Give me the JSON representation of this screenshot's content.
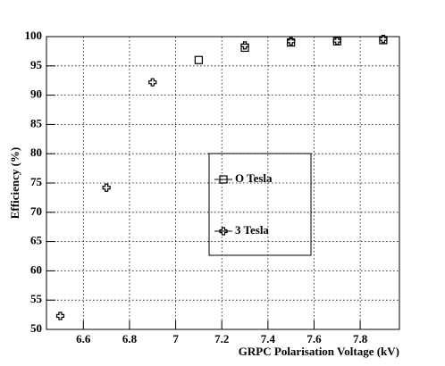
{
  "chart_data": {
    "type": "scatter",
    "x_label": "GRPC Polarisation Voltage (kV)",
    "y_label": "Efficiency (%)",
    "series": [
      {
        "name": "O Tesla",
        "color": "#000000",
        "marker": "square",
        "x": [
          7.1,
          7.3,
          7.5,
          7.7,
          7.9
        ],
        "values": [
          96.0,
          98.1,
          99.0,
          99.2,
          99.4
        ]
      },
      {
        "name": "3 Tesla",
        "color": "#000000",
        "marker": "cross",
        "x": [
          6.5,
          6.7,
          6.9,
          7.3,
          7.5,
          7.7,
          7.9
        ],
        "values": [
          52.3,
          74.2,
          92.2,
          98.5,
          99.2,
          99.3,
          99.6
        ]
      }
    ],
    "xlim": [
      6.44,
      7.97
    ],
    "ylim": [
      50,
      100
    ],
    "xticks": [
      6.6,
      6.8,
      7,
      7.2,
      7.4,
      7.6,
      7.8
    ],
    "yticks": [
      50,
      55,
      60,
      65,
      70,
      75,
      80,
      85,
      90,
      95,
      100
    ],
    "grid": true
  }
}
